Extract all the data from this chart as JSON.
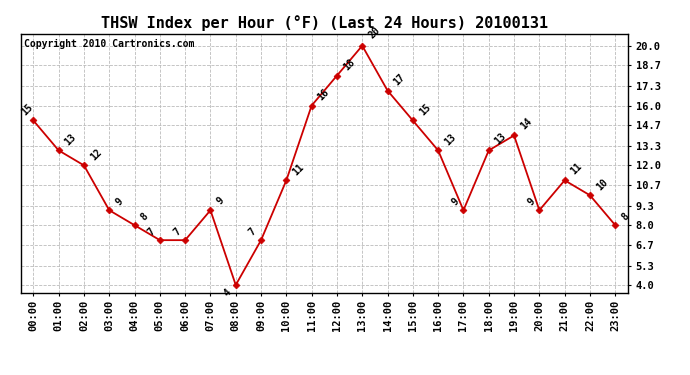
{
  "title": "THSW Index per Hour (°F) (Last 24 Hours) 20100131",
  "copyright": "Copyright 2010 Cartronics.com",
  "hours": [
    "00:00",
    "01:00",
    "02:00",
    "03:00",
    "04:00",
    "05:00",
    "06:00",
    "07:00",
    "08:00",
    "09:00",
    "10:00",
    "11:00",
    "12:00",
    "13:00",
    "14:00",
    "15:00",
    "16:00",
    "17:00",
    "18:00",
    "19:00",
    "20:00",
    "21:00",
    "22:00",
    "23:00"
  ],
  "values": [
    15,
    13,
    12,
    9,
    8,
    7,
    7,
    9,
    4,
    7,
    11,
    16,
    18,
    20,
    17,
    15,
    13,
    9,
    13,
    14,
    9,
    11,
    10,
    8
  ],
  "yticks": [
    4.0,
    5.3,
    6.7,
    8.0,
    9.3,
    10.7,
    12.0,
    13.3,
    14.7,
    16.0,
    17.3,
    18.7,
    20.0
  ],
  "ylim": [
    3.5,
    20.8
  ],
  "line_color": "#cc0000",
  "marker_color": "#cc0000",
  "bg_color": "#ffffff",
  "grid_color": "#bbbbbb",
  "title_fontsize": 11,
  "label_fontsize": 7.5,
  "copyright_fontsize": 7
}
